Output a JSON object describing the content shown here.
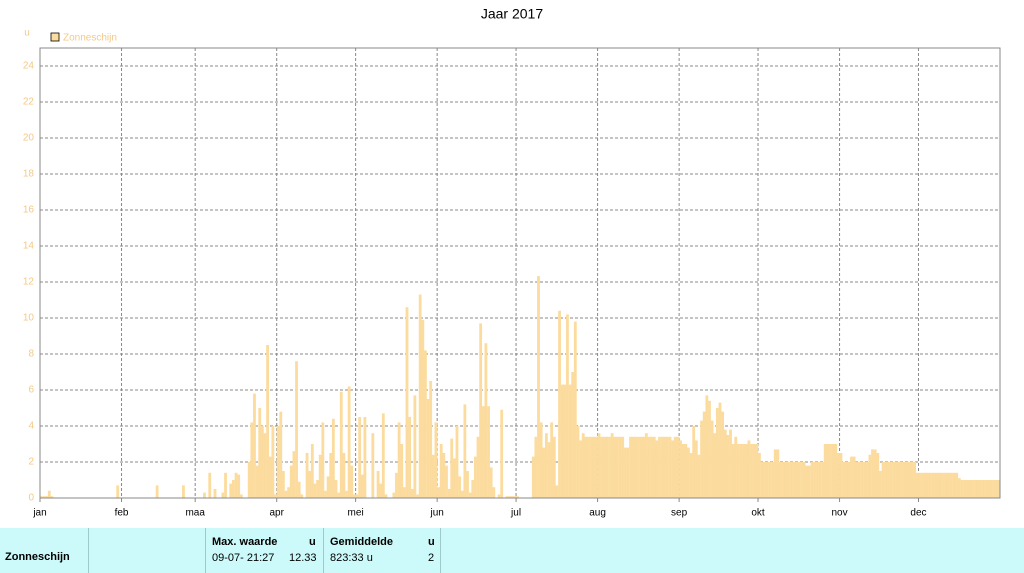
{
  "chart_data": {
    "type": "bar",
    "title": "Jaar 2017",
    "y_unit": "u",
    "series": [
      {
        "name": "Zonneschijn",
        "color": "#fcdc9e",
        "values": [
          0.1,
          0.1,
          0.1,
          0.4,
          0.1,
          0,
          0,
          0,
          0,
          0,
          0,
          0,
          0,
          0,
          0,
          0,
          0,
          0,
          0,
          0,
          0,
          0,
          0,
          0,
          0,
          0,
          0,
          0,
          0,
          0.7,
          0,
          0,
          0,
          0,
          0,
          0,
          0,
          0,
          0,
          0,
          0,
          0,
          0,
          0,
          0.7,
          0,
          0,
          0,
          0,
          0,
          0,
          0,
          0,
          0,
          0.7,
          0,
          0,
          0,
          0,
          0,
          0,
          0,
          0.3,
          0,
          1.4,
          0,
          0.5,
          0,
          0,
          0.3,
          1.4,
          0,
          0.8,
          1.0,
          1.4,
          1.3,
          0.2,
          0,
          0,
          2,
          4.2,
          5.8,
          1.8,
          5,
          4,
          3.6,
          8.5,
          2.3,
          4,
          0.2,
          4,
          4.8,
          1.5,
          0.4,
          0.6,
          1.8,
          2.6,
          7.6,
          0.9,
          0.2,
          0,
          2.5,
          1.5,
          3,
          0.8,
          1,
          2.4,
          4.2,
          0.4,
          1.2,
          2.5,
          4.4,
          1,
          0.3,
          5.9,
          2.5,
          0.4,
          6.2,
          1.8,
          0.2,
          0.2,
          4.5,
          1.3,
          4.5,
          0,
          0,
          3.6,
          0,
          1.5,
          0.8,
          4.7,
          0.2,
          0,
          0,
          0.3,
          1.4,
          4.2,
          3,
          0.6,
          10.6,
          4.5,
          0.5,
          5.7,
          0.2,
          11.3,
          9.9,
          8.2,
          5.5,
          6.5,
          2.4,
          4.2,
          0.6,
          3,
          2.5,
          1.8,
          0.5,
          3.3,
          2.2,
          4,
          1.2,
          0.4,
          5.2,
          1.5,
          0.3,
          1,
          2.3,
          3.4,
          9.7,
          5.1,
          8.6,
          5.1,
          1.7,
          0.6,
          0,
          0.2,
          4.9,
          0,
          0.1,
          0.1,
          0.1,
          0.1,
          0.1,
          0,
          0,
          0,
          0,
          0,
          2.3,
          3.4,
          12.33,
          4.2,
          2.8,
          3.6,
          3.1,
          4.2,
          3.4,
          0.7,
          10.4,
          6.3,
          6.3,
          10.2,
          6.3,
          7,
          9.8,
          4,
          3.2,
          3.6,
          3.4,
          3.4,
          3.4,
          3.4,
          3.4,
          3.6,
          3.4,
          3.4,
          3.4,
          3.4,
          3.6,
          3.4,
          3.4,
          3.4,
          3.4,
          2.8,
          2.8,
          3.4,
          3.4,
          3.4,
          3.4,
          3.4,
          3.4,
          3.6,
          3.4,
          3.4,
          3.4,
          3.2,
          3.4,
          3.4,
          3.4,
          3.4,
          3.4,
          3.2,
          3.4,
          3.4,
          3.2,
          3,
          3,
          2.8,
          2.5,
          4,
          3.2,
          2.4,
          4.3,
          4.8,
          5.7,
          5.4,
          4.3,
          3.6,
          5,
          5.3,
          4.8,
          3.8,
          3.5,
          3.8,
          3,
          3.4,
          3,
          3,
          3,
          3,
          3.2,
          3,
          3,
          3,
          2.5,
          2,
          2,
          2,
          2,
          2,
          2.7,
          2.7,
          2,
          2,
          2,
          2,
          2,
          2,
          2,
          2,
          2,
          2,
          1.8,
          1.8,
          2,
          2,
          2,
          2,
          2,
          3,
          3,
          3,
          3,
          3,
          2.5,
          2.5,
          2,
          2,
          2,
          2.3,
          2.3,
          2,
          2,
          2,
          2,
          2,
          2.4,
          2.7,
          2.7,
          2.5,
          1.5,
          2,
          2,
          2,
          2,
          2,
          2,
          2,
          2,
          2,
          2,
          2,
          2,
          2,
          1.4,
          1.4,
          1.4,
          1.4,
          1.4,
          1.4,
          1.4,
          1.4,
          1.4,
          1.4,
          1.4,
          1.4,
          1.4,
          1.4,
          1.4,
          1.4,
          1.1,
          1,
          1,
          1,
          1,
          1,
          1,
          1,
          1,
          1,
          1,
          1,
          1,
          1,
          1,
          1
        ]
      }
    ],
    "categories": [
      "jan",
      null,
      null,
      null,
      null,
      null,
      null,
      null,
      null,
      null,
      null,
      null,
      null,
      null,
      null,
      null,
      null,
      null,
      null,
      null,
      null,
      null,
      null,
      null,
      null,
      null,
      null,
      null,
      null,
      null,
      null,
      "feb",
      null,
      null,
      null,
      null,
      null,
      null,
      null,
      null,
      null,
      null,
      null,
      null,
      null,
      null,
      null,
      null,
      null,
      null,
      null,
      null,
      null,
      null,
      null,
      null,
      null,
      null,
      null,
      "maa",
      null,
      null,
      null,
      null,
      null,
      null,
      null,
      null,
      null,
      null,
      null,
      null,
      null,
      null,
      null,
      null,
      null,
      null,
      null,
      null,
      null,
      null,
      null,
      null,
      null,
      null,
      null,
      null,
      null,
      null,
      "apr",
      null,
      null,
      null,
      null,
      null,
      null,
      null,
      null,
      null,
      null,
      null,
      null,
      null,
      null,
      null,
      null,
      null,
      null,
      null,
      null,
      null,
      null,
      null,
      null,
      null,
      null,
      null,
      null,
      null,
      "mei",
      null,
      null,
      null,
      null,
      null,
      null,
      null,
      null,
      null,
      null,
      null,
      null,
      null,
      null,
      null,
      null,
      null,
      null,
      null,
      null,
      null,
      null,
      null,
      null,
      null,
      null,
      null,
      null,
      null,
      null,
      "jun",
      null,
      null,
      null,
      null,
      null,
      null,
      null,
      null,
      null,
      null,
      null,
      null,
      null,
      null,
      null,
      null,
      null,
      null,
      null,
      null,
      null,
      null,
      null,
      null,
      null,
      null,
      null,
      null,
      null,
      "jul",
      null,
      null,
      null,
      null,
      null,
      null,
      null,
      null,
      null,
      null,
      null,
      null,
      null,
      null,
      null,
      null,
      null,
      null,
      null,
      null,
      null,
      null,
      null,
      null,
      null,
      null,
      null,
      null,
      null,
      null,
      "aug",
      null,
      null,
      null,
      null,
      null,
      null,
      null,
      null,
      null,
      null,
      null,
      null,
      null,
      null,
      null,
      null,
      null,
      null,
      null,
      null,
      null,
      null,
      null,
      null,
      null,
      null,
      null,
      null,
      null,
      null,
      "sep",
      null,
      null,
      null,
      null,
      null,
      null,
      null,
      null,
      null,
      null,
      null,
      null,
      null,
      null,
      null,
      null,
      null,
      null,
      null,
      null,
      null,
      null,
      null,
      null,
      null,
      null,
      null,
      null,
      null,
      "okt",
      null,
      null,
      null,
      null,
      null,
      null,
      null,
      null,
      null,
      null,
      null,
      null,
      null,
      null,
      null,
      null,
      null,
      null,
      null,
      null,
      null,
      null,
      null,
      null,
      null,
      null,
      null,
      null,
      null,
      null,
      "nov",
      null,
      null,
      null,
      null,
      null,
      null,
      null,
      null,
      null,
      null,
      null,
      null,
      null,
      null,
      null,
      null,
      null,
      null,
      null,
      null,
      null,
      null,
      null,
      null,
      null,
      null,
      null,
      null,
      null,
      "dec",
      null,
      null,
      null,
      null,
      null,
      null,
      null,
      null,
      null,
      null,
      null,
      null,
      null,
      null,
      null,
      null,
      null,
      null,
      null,
      null,
      null,
      null,
      null,
      null,
      null,
      null,
      null,
      null,
      null,
      null
    ],
    "ylim": [
      0,
      24
    ],
    "yticks": [
      0,
      2,
      4,
      6,
      8,
      10,
      12,
      14,
      16,
      18,
      20,
      22,
      24
    ],
    "grid": true,
    "legend": "top-left"
  },
  "table": {
    "headers": [
      "Max. waarde",
      "u",
      "Gemiddelde",
      "u"
    ],
    "rows": [
      [
        "Zonneschijn",
        "09-07- 21:27",
        "12.33",
        "823:33 u",
        "2"
      ]
    ]
  }
}
